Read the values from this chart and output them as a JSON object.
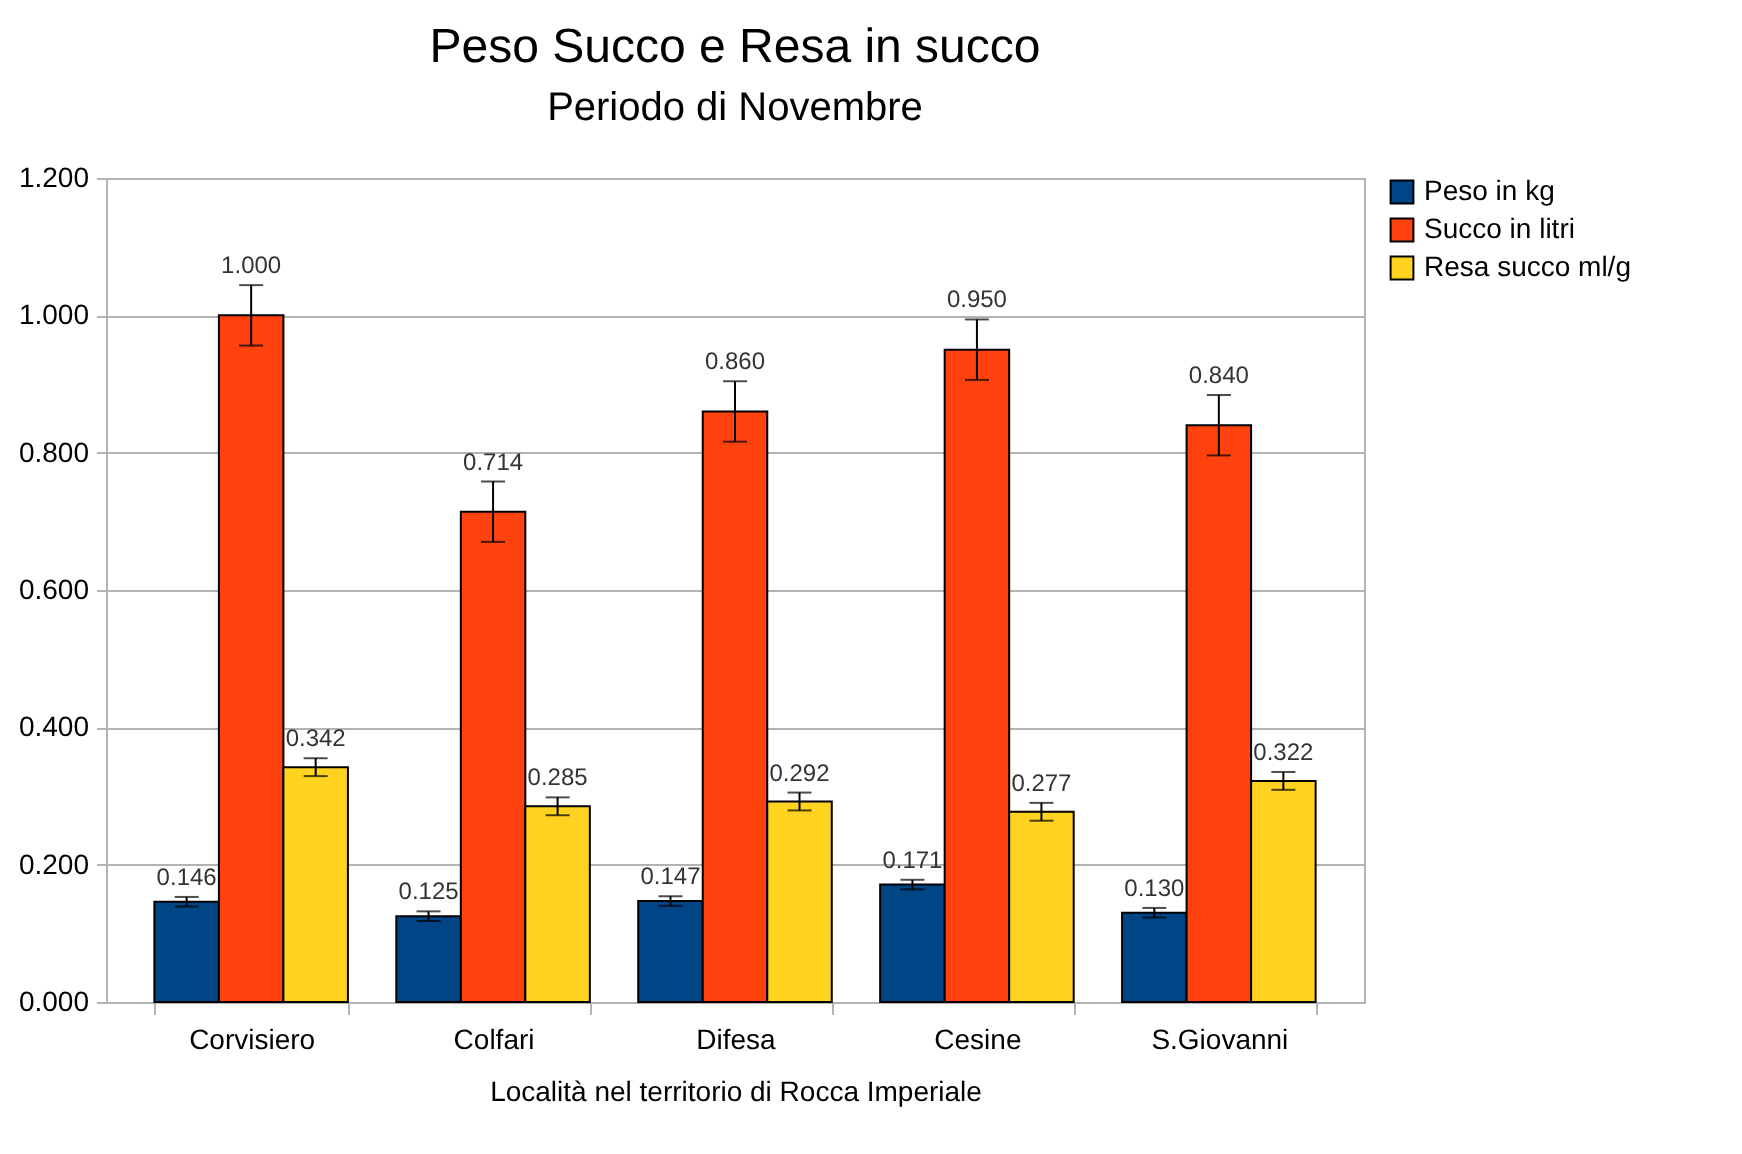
{
  "chart_data": {
    "type": "bar",
    "title": "Peso Succo e Resa in succo",
    "subtitle": "Periodo di Novembre",
    "xlabel": "Località nel territorio di Rocca Imperiale",
    "categories": [
      "Corvisiero",
      "Colfari",
      "Difesa",
      "Cesine",
      "S.Giovanni"
    ],
    "series": [
      {
        "name": "Peso in kg",
        "color": "#004586",
        "values": [
          0.146,
          0.125,
          0.147,
          0.171,
          0.13
        ],
        "errors": [
          0.007,
          0.007,
          0.007,
          0.007,
          0.007
        ],
        "value_labels": [
          "0.146",
          "0.125",
          "0.147",
          "0.171",
          "0.130"
        ]
      },
      {
        "name": "Succo in litri",
        "color": "#ff420e",
        "values": [
          1.0,
          0.714,
          0.86,
          0.95,
          0.84
        ],
        "errors": [
          0.044,
          0.044,
          0.044,
          0.044,
          0.044
        ],
        "value_labels": [
          "1.000",
          "0.714",
          "0.860",
          "0.950",
          "0.840"
        ]
      },
      {
        "name": "Resa succo ml/g",
        "color": "#ffd320",
        "values": [
          0.342,
          0.285,
          0.292,
          0.277,
          0.322
        ],
        "errors": [
          0.013,
          0.013,
          0.013,
          0.013,
          0.013
        ],
        "value_labels": [
          "0.342",
          "0.285",
          "0.292",
          "0.277",
          "0.322"
        ]
      }
    ],
    "ylim": [
      0,
      1.2
    ],
    "yticks": [
      {
        "value": 0,
        "label": "0.000"
      },
      {
        "value": 0.2,
        "label": "0.200"
      },
      {
        "value": 0.4,
        "label": "0.400"
      },
      {
        "value": 0.6,
        "label": "0.600"
      },
      {
        "value": 0.8,
        "label": "0.800"
      },
      {
        "value": 1.0,
        "label": "1.000"
      },
      {
        "value": 1.2,
        "label": "1.200"
      }
    ],
    "grid": "y",
    "legend": "right"
  }
}
